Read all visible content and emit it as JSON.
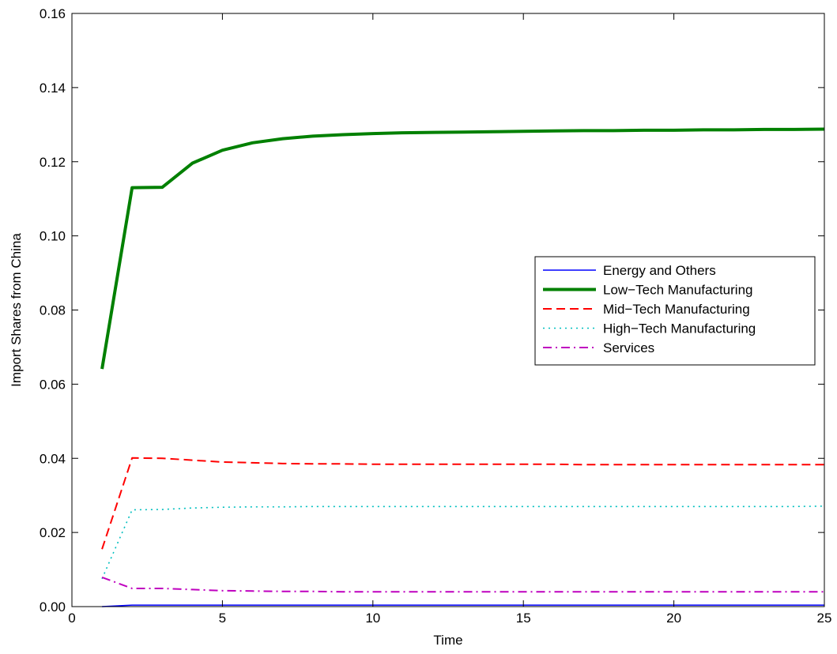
{
  "chart_data": {
    "type": "line",
    "xlabel": "Time",
    "ylabel": "Import Shares from China",
    "xlim": [
      0,
      25
    ],
    "ylim": [
      0,
      0.16
    ],
    "x_ticks": [
      0,
      5,
      10,
      15,
      20,
      25
    ],
    "x_tick_labels": [
      "0",
      "5",
      "10",
      "15",
      "20",
      "25"
    ],
    "y_ticks": [
      0,
      0.02,
      0.04,
      0.06,
      0.08,
      0.1,
      0.12,
      0.14,
      0.16
    ],
    "y_tick_labels": [
      "0.00",
      "0.02",
      "0.04",
      "0.06",
      "0.08",
      "0.10",
      "0.12",
      "0.14",
      "0.16"
    ],
    "grid": false,
    "legend_position": "right",
    "x": [
      1,
      2,
      3,
      4,
      5,
      6,
      7,
      8,
      9,
      10,
      11,
      12,
      13,
      14,
      15,
      16,
      17,
      18,
      19,
      20,
      21,
      22,
      23,
      24,
      25
    ],
    "series": [
      {
        "name": "Energy and Others",
        "color": "#0000ff",
        "style": "solid",
        "width": 1.6,
        "values": [
          0.0,
          0.0004,
          0.0004,
          0.0004,
          0.0004,
          0.0004,
          0.0004,
          0.0004,
          0.0004,
          0.0004,
          0.0004,
          0.0004,
          0.0004,
          0.0004,
          0.0004,
          0.0004,
          0.0004,
          0.0004,
          0.0004,
          0.0004,
          0.0004,
          0.0004,
          0.0004,
          0.0004,
          0.0004
        ]
      },
      {
        "name": "Low−Tech Manufacturing",
        "color": "#008000",
        "style": "solid",
        "width": 4,
        "values": [
          0.0641,
          0.113,
          0.1131,
          0.1196,
          0.1231,
          0.1251,
          0.1262,
          0.1269,
          0.1273,
          0.1276,
          0.1278,
          0.1279,
          0.128,
          0.1281,
          0.1282,
          0.1283,
          0.1284,
          0.1284,
          0.1285,
          0.1285,
          0.1286,
          0.1286,
          0.1287,
          0.1287,
          0.1288
        ]
      },
      {
        "name": "Mid−Tech Manufacturing",
        "color": "#ff0000",
        "style": "dashed",
        "width": 2,
        "values": [
          0.0155,
          0.0401,
          0.04,
          0.0395,
          0.039,
          0.0388,
          0.0386,
          0.0385,
          0.0385,
          0.0384,
          0.0384,
          0.0384,
          0.0384,
          0.0384,
          0.0384,
          0.0384,
          0.0383,
          0.0383,
          0.0383,
          0.0383,
          0.0383,
          0.0383,
          0.0383,
          0.0383,
          0.0383
        ]
      },
      {
        "name": "High−Tech Manufacturing",
        "color": "#00bfbf",
        "style": "dotted",
        "width": 1.6,
        "values": [
          0.0075,
          0.0261,
          0.0262,
          0.0266,
          0.0268,
          0.0269,
          0.0269,
          0.027,
          0.027,
          0.027,
          0.027,
          0.027,
          0.027,
          0.027,
          0.027,
          0.027,
          0.027,
          0.027,
          0.027,
          0.027,
          0.027,
          0.027,
          0.027,
          0.027,
          0.0271
        ]
      },
      {
        "name": "Services",
        "color": "#bf00bf",
        "style": "dashdot",
        "width": 2,
        "values": [
          0.0079,
          0.0049,
          0.0049,
          0.0046,
          0.0043,
          0.0042,
          0.0041,
          0.0041,
          0.004,
          0.004,
          0.004,
          0.004,
          0.004,
          0.004,
          0.004,
          0.004,
          0.004,
          0.004,
          0.004,
          0.004,
          0.004,
          0.004,
          0.004,
          0.004,
          0.004
        ]
      }
    ]
  }
}
